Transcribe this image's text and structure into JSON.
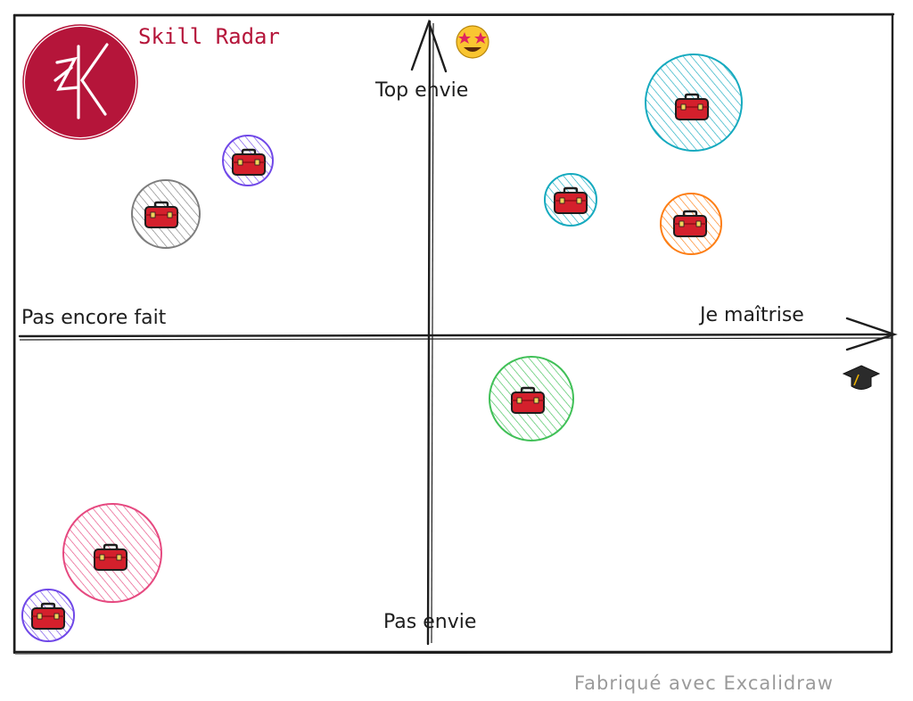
{
  "title": "Skill Radar",
  "footer": "Fabriqué avec Excalidraw",
  "axes": {
    "top": "Top envie",
    "bottom": "Pas envie",
    "left": "Pas encore fait",
    "right": "Je maîtrise"
  },
  "icons": {
    "logo": "zk-logo",
    "top": "star-struck-emoji-icon",
    "right": "graduation-cap-icon",
    "skill": "toolbox-icon"
  },
  "colors": {
    "brand": "#b5153a",
    "gray": "#7d7d7d",
    "purple": "#7048e8",
    "cyan": "#15aabf",
    "orange": "#fd7e14",
    "green": "#40c057",
    "pink": "#e64980"
  },
  "skills": [
    {
      "color": "purple"
    },
    {
      "color": "gray"
    },
    {
      "color": "cyan"
    },
    {
      "color": "cyan"
    },
    {
      "color": "orange"
    },
    {
      "color": "green"
    },
    {
      "color": "pink"
    },
    {
      "color": "purple"
    }
  ]
}
